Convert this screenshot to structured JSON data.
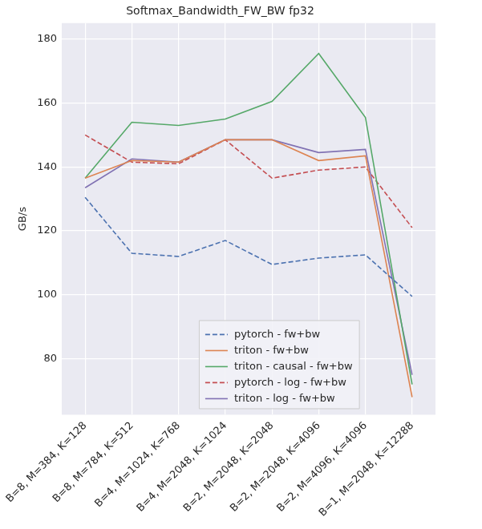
{
  "chart_data": {
    "type": "line",
    "title": "Softmax_Bandwidth_FW_BW fp32",
    "y_label": "GB/s",
    "categories": [
      "B=8, M=384, K=128",
      "B=8, M=784, K=512",
      "B=4, M=1024, K=768",
      "B=4, M=2048, K=1024",
      "B=2, M=2048, K=2048",
      "B=2, M=2048, K=4096",
      "B=2, M=4096, K=4096",
      "B=1, M=2048, K=12288"
    ],
    "series": [
      {
        "name": "pytorch - fw+bw",
        "color": "#4c72b0",
        "line_style": "dashed",
        "values": [
          130.5,
          113,
          112,
          117,
          109.5,
          111.5,
          112.5,
          99.5
        ]
      },
      {
        "name": "triton - fw+bw",
        "color": "#dd8452",
        "line_style": "solid",
        "values": [
          136.5,
          142,
          141.5,
          148.5,
          148.5,
          142,
          143.5,
          68
        ]
      },
      {
        "name": "triton - causal - fw+bw",
        "color": "#55a868",
        "line_style": "solid",
        "values": [
          136.5,
          154,
          153,
          155,
          160.5,
          175.5,
          155.5,
          72
        ]
      },
      {
        "name": "pytorch - log - fw+bw",
        "color": "#c44e52",
        "line_style": "dashed",
        "values": [
          150,
          141.5,
          141,
          148.5,
          136.5,
          139,
          140,
          121
        ]
      },
      {
        "name": "triton - log - fw+bw",
        "color": "#8172b3",
        "line_style": "solid",
        "values": [
          133.5,
          142.5,
          141.5,
          148.5,
          148.5,
          144.5,
          145.5,
          75
        ]
      }
    ],
    "ylim": [
      62.5,
      185
    ],
    "yticks": [
      80,
      100,
      120,
      140,
      160,
      180
    ],
    "grid": true,
    "legend": "lower right"
  }
}
